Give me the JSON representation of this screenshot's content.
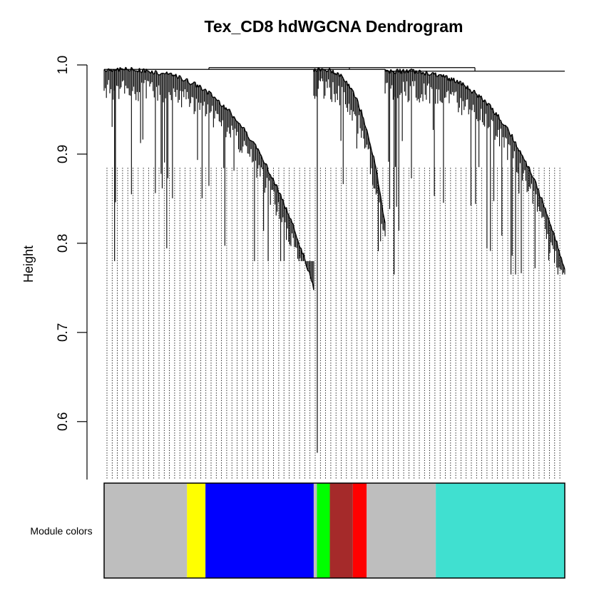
{
  "chart_data": {
    "type": "dendrogram",
    "title": "Tex_CD8 hdWGCNA Dendrogram",
    "ylabel": "Height",
    "xlabel": "",
    "ylim": [
      0.535,
      1.0
    ],
    "y_ticks": [
      0.6,
      0.7,
      0.8,
      0.9,
      1.0
    ],
    "y_tick_labels": [
      "0.6",
      "0.7",
      "0.8",
      "0.9",
      "1.0"
    ],
    "root_height": 0.997,
    "clusters": [
      {
        "span": [
          0.0,
          0.455
        ],
        "top_height": 0.995,
        "low_height": 0.75,
        "min_branch": 0.78
      },
      {
        "span": [
          0.455,
          0.61
        ],
        "top_height": 0.995,
        "low_height": 0.82,
        "min_branch": 0.565
      },
      {
        "span": [
          0.61,
          1.0
        ],
        "top_height": 0.993,
        "low_height": 0.77,
        "min_branch": 0.765
      }
    ],
    "module_track_label": "Module colors",
    "module_colors": [
      {
        "color": "#BEBEBE",
        "start": 0.0,
        "end": 0.18
      },
      {
        "color": "#FFFF00",
        "start": 0.18,
        "end": 0.22
      },
      {
        "color": "#0000FF",
        "start": 0.22,
        "end": 0.455
      },
      {
        "color": "#BEBEBE",
        "start": 0.455,
        "end": 0.462
      },
      {
        "color": "#00FF00",
        "start": 0.462,
        "end": 0.49
      },
      {
        "color": "#A52A2A",
        "start": 0.49,
        "end": 0.54
      },
      {
        "color": "#FF0000",
        "start": 0.54,
        "end": 0.57
      },
      {
        "color": "#BEBEBE",
        "start": 0.57,
        "end": 0.72
      },
      {
        "color": "#40E0D0",
        "start": 0.72,
        "end": 1.0
      }
    ]
  }
}
